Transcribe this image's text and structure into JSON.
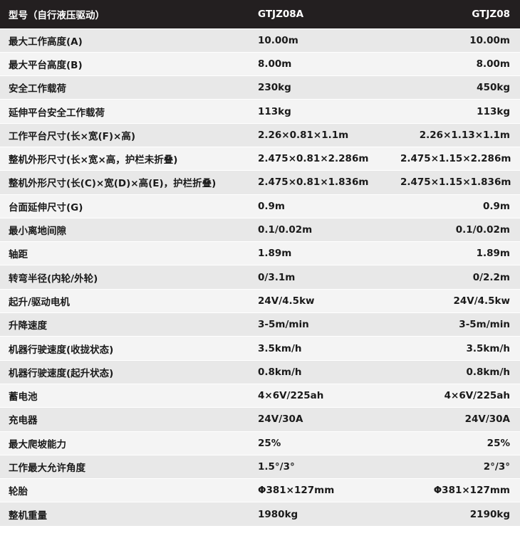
{
  "table": {
    "header": [
      "型号（自行液压驱动）",
      "GTJZ08A",
      "GTJZ08"
    ],
    "rows": [
      [
        "最大工作高度(A)",
        "10.00m",
        "10.00m"
      ],
      [
        "最大平台高度(B)",
        "8.00m",
        "8.00m"
      ],
      [
        "安全工作载荷",
        "230kg",
        "450kg"
      ],
      [
        "延伸平台安全工作载荷",
        "113kg",
        "113kg"
      ],
      [
        "工作平台尺寸(长×宽(F)×高)",
        "2.26×0.81×1.1m",
        "2.26×1.13×1.1m"
      ],
      [
        "整机外形尺寸(长×宽×高，护栏未折叠)",
        "2.475×0.81×2.286m",
        "2.475×1.15×2.286m"
      ],
      [
        "整机外形尺寸(长(C)×宽(D)×高(E)，护栏折叠)",
        "2.475×0.81×1.836m",
        "2.475×1.15×1.836m"
      ],
      [
        "台面延伸尺寸(G)",
        "0.9m",
        "0.9m"
      ],
      [
        "最小离地间隙",
        "0.1/0.02m",
        "0.1/0.02m"
      ],
      [
        "轴距",
        "1.89m",
        "1.89m"
      ],
      [
        "转弯半径(内轮/外轮)",
        "0/3.1m",
        "0/2.2m"
      ],
      [
        "起升/驱动电机",
        "24V/4.5kw",
        "24V/4.5kw"
      ],
      [
        "升降速度",
        "3-5m/min",
        "3-5m/min"
      ],
      [
        "机器行驶速度(收拢状态)",
        "3.5km/h",
        "3.5km/h"
      ],
      [
        "机器行驶速度(起升状态)",
        "0.8km/h",
        "0.8km/h"
      ],
      [
        "蓄电池",
        "4×6V/225ah",
        "4×6V/225ah"
      ],
      [
        "充电器",
        "24V/30A",
        "24V/30A"
      ],
      [
        "最大爬坡能力",
        "25%",
        "25%"
      ],
      [
        "工作最大允许角度",
        "1.5°/3°",
        "2°/3°"
      ],
      [
        "轮胎",
        "Φ381×127mm",
        "Φ381×127mm"
      ],
      [
        "整机重量",
        "1980kg",
        "2190kg"
      ]
    ]
  }
}
